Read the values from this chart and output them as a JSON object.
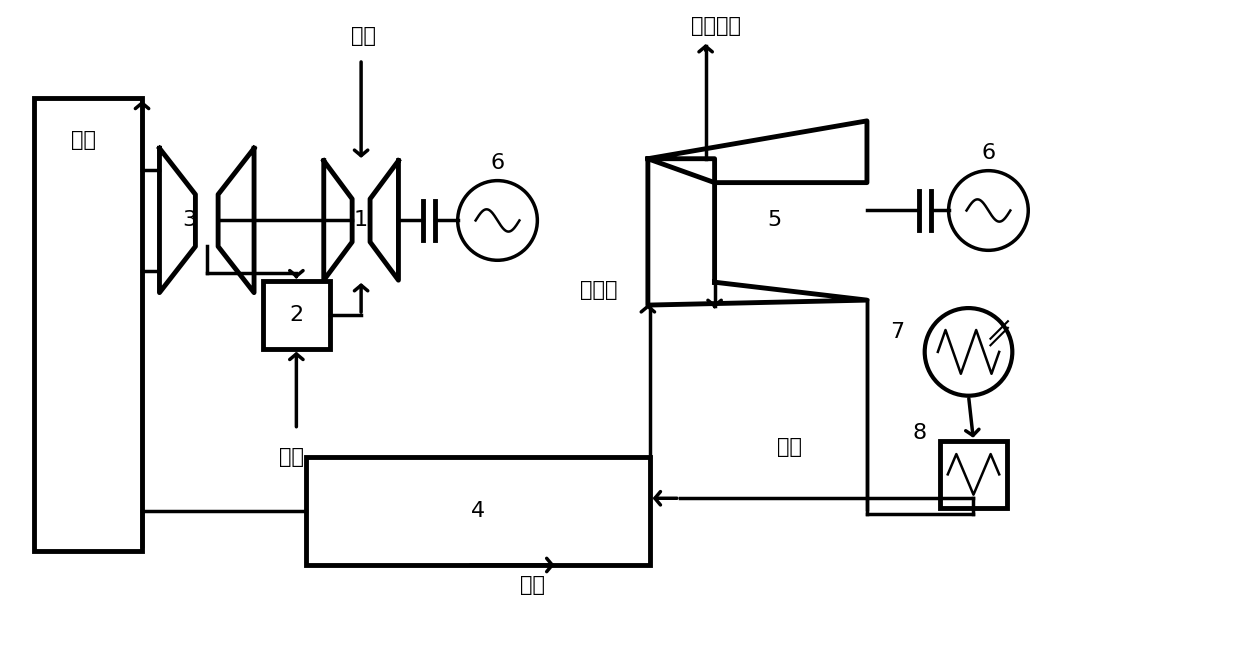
{
  "bg": "#ffffff",
  "lw": 2.5,
  "lwt": 3.5,
  "labels": {
    "smoke": "烟气",
    "air": "空气",
    "fuel": "燃气",
    "main_steam": "主蒸汽",
    "extraction": "抽汽供热",
    "feedwater": "给水",
    "exhaust": "排气"
  },
  "nums": [
    "1",
    "2",
    "3",
    "4",
    "5",
    "6",
    "7",
    "8"
  ],
  "figsize": [
    12.39,
    6.54
  ],
  "dpi": 100
}
